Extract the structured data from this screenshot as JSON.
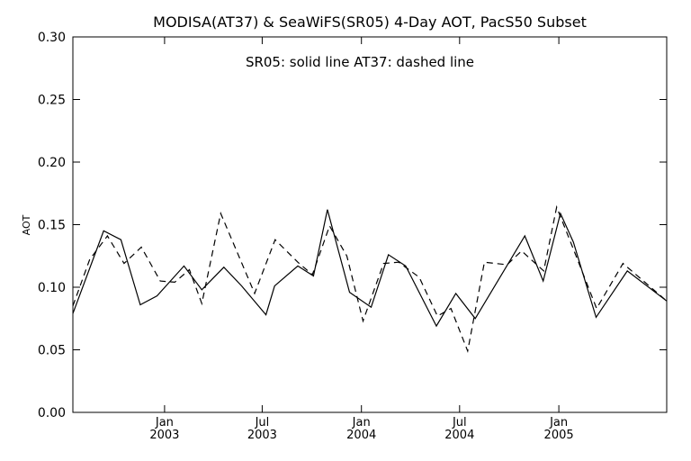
{
  "chart_data": {
    "type": "line",
    "title": "MODISA(AT37) & SeaWiFS(SR05) 4-Day AOT, PacS50 Subset",
    "subtitle": "SR05: solid line   AT37: dashed line",
    "xlabel": "",
    "ylabel": "AOT",
    "xlim": [
      "2002-07-15",
      "2005-07-20"
    ],
    "ylim": [
      0.0,
      0.3
    ],
    "grid": false,
    "legend": "none",
    "yticks": [
      "0.00",
      "0.05",
      "0.10",
      "0.15",
      "0.20",
      "0.25",
      "0.30"
    ],
    "xticks": [
      {
        "date": "2003-01-01",
        "month": "Jan",
        "year": "2003"
      },
      {
        "date": "2003-07-01",
        "month": "Jul",
        "year": "2003"
      },
      {
        "date": "2004-01-01",
        "month": "Jan",
        "year": "2004"
      },
      {
        "date": "2004-07-01",
        "month": "Jul",
        "year": "2004"
      },
      {
        "date": "2005-01-01",
        "month": "Jan",
        "year": "2005"
      }
    ],
    "series": [
      {
        "name": "SR05",
        "style": "solid",
        "points": [
          [
            "2002-07-15",
            0.079
          ],
          [
            "2002-09-10",
            0.145
          ],
          [
            "2002-10-12",
            0.138
          ],
          [
            "2002-11-17",
            0.086
          ],
          [
            "2002-12-18",
            0.093
          ],
          [
            "2003-02-06",
            0.117
          ],
          [
            "2003-03-11",
            0.098
          ],
          [
            "2003-04-21",
            0.116
          ],
          [
            "2003-05-24",
            0.101
          ],
          [
            "2003-07-08",
            0.078
          ],
          [
            "2003-07-24",
            0.101
          ],
          [
            "2003-09-05",
            0.117
          ],
          [
            "2003-10-04",
            0.109
          ],
          [
            "2003-10-30",
            0.162
          ],
          [
            "2003-12-10",
            0.096
          ],
          [
            "2004-01-19",
            0.084
          ],
          [
            "2004-02-20",
            0.126
          ],
          [
            "2004-03-23",
            0.117
          ],
          [
            "2004-05-19",
            0.069
          ],
          [
            "2004-06-24",
            0.095
          ],
          [
            "2004-07-30",
            0.075
          ],
          [
            "2004-10-30",
            0.141
          ],
          [
            "2004-12-03",
            0.105
          ],
          [
            "2005-01-04",
            0.159
          ],
          [
            "2005-01-28",
            0.136
          ],
          [
            "2005-03-11",
            0.076
          ],
          [
            "2005-05-08",
            0.113
          ],
          [
            "2005-07-20",
            0.089
          ]
        ]
      },
      {
        "name": "AT37",
        "style": "dashed",
        "points": [
          [
            "2002-07-15",
            0.085
          ],
          [
            "2002-08-15",
            0.122
          ],
          [
            "2002-09-17",
            0.141
          ],
          [
            "2002-10-18",
            0.119
          ],
          [
            "2002-11-19",
            0.132
          ],
          [
            "2002-12-24",
            0.105
          ],
          [
            "2003-01-20",
            0.104
          ],
          [
            "2003-02-16",
            0.114
          ],
          [
            "2003-03-11",
            0.087
          ],
          [
            "2003-04-15",
            0.159
          ],
          [
            "2003-06-17",
            0.095
          ],
          [
            "2003-07-25",
            0.138
          ],
          [
            "2003-09-05",
            0.12
          ],
          [
            "2003-10-02",
            0.11
          ],
          [
            "2003-11-03",
            0.149
          ],
          [
            "2003-12-05",
            0.125
          ],
          [
            "2004-01-04",
            0.073
          ],
          [
            "2004-02-11",
            0.119
          ],
          [
            "2004-03-10",
            0.12
          ],
          [
            "2004-04-17",
            0.108
          ],
          [
            "2004-05-21",
            0.077
          ],
          [
            "2004-06-15",
            0.083
          ],
          [
            "2004-07-16",
            0.049
          ],
          [
            "2004-08-16",
            0.12
          ],
          [
            "2004-09-27",
            0.118
          ],
          [
            "2004-10-24",
            0.129
          ],
          [
            "2004-12-04",
            0.113
          ],
          [
            "2004-12-28",
            0.164
          ],
          [
            "2005-02-02",
            0.125
          ],
          [
            "2005-03-12",
            0.083
          ],
          [
            "2005-04-30",
            0.119
          ],
          [
            "2005-07-20",
            0.089
          ]
        ]
      }
    ]
  }
}
